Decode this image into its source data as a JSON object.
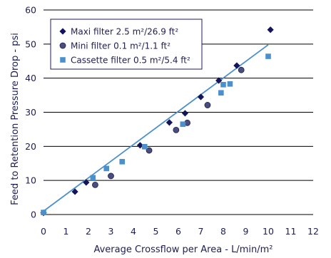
{
  "chart_data": {
    "type": "scatter",
    "title": "",
    "xlabel": "Average Crossflow per Area - L/min/m²",
    "ylabel": "Feed to Retention Pressure Drop - psi",
    "xlim": [
      0,
      12
    ],
    "ylim": [
      0,
      60
    ],
    "x_ticks": [
      "0",
      "1",
      "2",
      "3",
      "4",
      "5",
      "6",
      "7",
      "8",
      "9",
      "10",
      "11",
      "12"
    ],
    "y_ticks": [
      "0",
      "10",
      "20",
      "30",
      "40",
      "50",
      "60"
    ],
    "grid": "horizontal",
    "legend_position": "top-left",
    "series": [
      {
        "name": "Maxi filter 2.5 m²/26.9 ft²",
        "marker": "diamond",
        "color": "#14145a",
        "points": [
          [
            0,
            0.5
          ],
          [
            1.4,
            6.7
          ],
          [
            1.9,
            9.4
          ],
          [
            4.3,
            20.3
          ],
          [
            5.6,
            27.0
          ],
          [
            6.3,
            29.7
          ],
          [
            7.0,
            34.5
          ],
          [
            7.8,
            39.3
          ],
          [
            8.6,
            43.7
          ],
          [
            10.1,
            54.2
          ]
        ]
      },
      {
        "name": "Mini filter 0.1 m²/1.1 ft²",
        "marker": "circle",
        "color": "#4a4e7e",
        "points": [
          [
            2.3,
            8.7
          ],
          [
            3.0,
            11.3
          ],
          [
            4.7,
            18.8
          ],
          [
            5.9,
            24.8
          ],
          [
            6.4,
            26.9
          ],
          [
            7.3,
            32.1
          ],
          [
            8.8,
            42.4
          ]
        ]
      },
      {
        "name": "Cassette filter 0.5 m²/5.4 ft²",
        "marker": "square",
        "color": "#4a90cc",
        "points": [
          [
            0,
            0.6
          ],
          [
            2.2,
            10.8
          ],
          [
            2.8,
            13.5
          ],
          [
            3.5,
            15.5
          ],
          [
            4.5,
            19.9
          ],
          [
            6.2,
            26.5
          ],
          [
            7.9,
            35.7
          ],
          [
            8.0,
            38.1
          ],
          [
            8.3,
            38.3
          ],
          [
            10.0,
            46.4
          ]
        ]
      }
    ],
    "trendline": {
      "color": "#4a90cc",
      "points": [
        [
          0,
          1.0
        ],
        [
          10,
          49.8
        ]
      ]
    }
  },
  "colors": {
    "text": "#1e1e50",
    "grid": "#000000"
  }
}
